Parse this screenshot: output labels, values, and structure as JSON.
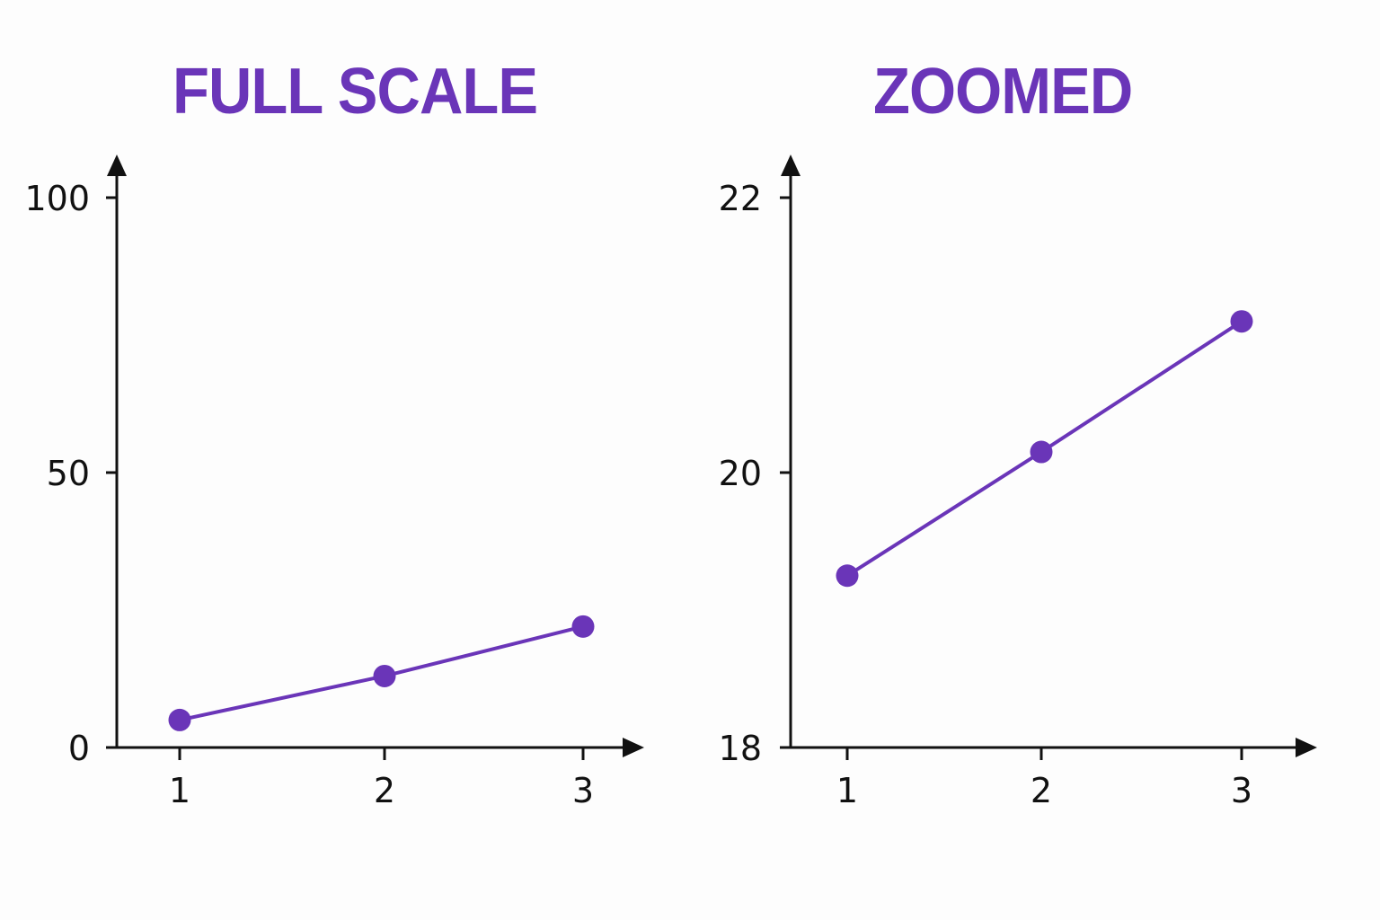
{
  "colors": {
    "accent": "#6a35b8",
    "axis": "#111111",
    "background": "#fdfdfd"
  },
  "chart_data": [
    {
      "type": "line",
      "title": "FULL SCALE",
      "xlabel": "",
      "ylabel": "",
      "x": [
        1,
        2,
        3
      ],
      "series": [
        {
          "values": [
            5,
            13,
            22
          ]
        }
      ],
      "x_ticks": [
        "1",
        "2",
        "3"
      ],
      "y_ticks": [
        "0",
        "50",
        "100"
      ],
      "ylim": [
        0,
        100
      ],
      "grid": false,
      "markers": true
    },
    {
      "type": "line",
      "title": "ZOOMED",
      "xlabel": "",
      "ylabel": "",
      "x": [
        1,
        2,
        3
      ],
      "series": [
        {
          "values": [
            19.25,
            20.15,
            21.1
          ]
        }
      ],
      "x_ticks": [
        "1",
        "2",
        "3"
      ],
      "y_ticks": [
        "18",
        "20",
        "22"
      ],
      "ylim": [
        18,
        22
      ],
      "grid": false,
      "markers": true
    }
  ]
}
